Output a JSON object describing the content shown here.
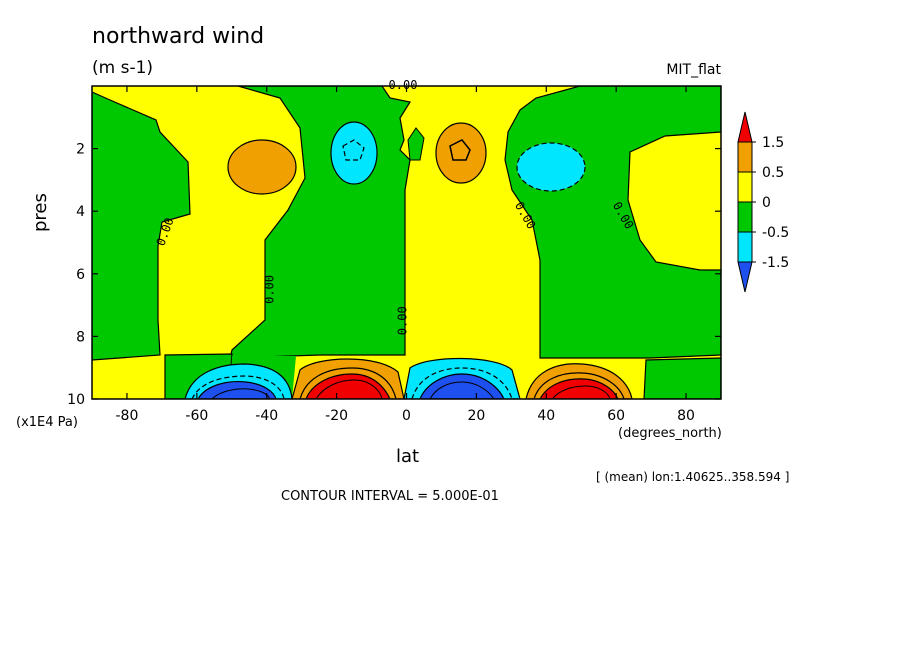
{
  "title": "northward wind",
  "units": "(m s-1)",
  "dataset_label": "MIT_flat",
  "x_axis_label": "lat",
  "x_axis_units": "(degrees_north)",
  "y_axis_label": "pres",
  "y_axis_units": "(x1E4 Pa)",
  "mean_info": "[ (mean) lon:1.40625..358.594 ]",
  "contour_info": "CONTOUR INTERVAL = 5.000E-01",
  "colors": {
    "green": "#00c800",
    "yellow": "#ffff00",
    "orange": "#f0a000",
    "red": "#f00000",
    "cyan": "#00e6ff",
    "blue": "#1e50f0"
  },
  "chart_data": {
    "type": "heatmap",
    "title": "northward wind",
    "subtitle": "(m s-1)",
    "xlabel": "lat",
    "ylabel": "pres",
    "xlim": [
      -90,
      90
    ],
    "ylim": [
      10,
      0
    ],
    "x_ticks": [
      "-80",
      "-60",
      "-40",
      "-20",
      "0",
      "20",
      "40",
      "60",
      "80"
    ],
    "x_tick_values": [
      -80,
      -60,
      -40,
      -20,
      0,
      20,
      40,
      60,
      80
    ],
    "y_ticks": [
      "2",
      "4",
      "6",
      "8",
      "10"
    ],
    "y_tick_values": [
      2,
      4,
      6,
      8,
      10
    ],
    "colorbar": {
      "labels": [
        "1.5",
        "0.5",
        "0",
        "-0.5",
        "-1.5"
      ],
      "colors": [
        "#f00000",
        "#f0a000",
        "#ffff00",
        "#00c800",
        "#00e6ff",
        "#1e50f0"
      ]
    },
    "contour_labels": [
      {
        "text": "0.00",
        "lat": -1,
        "pres": 0.1
      },
      {
        "text": "0.00",
        "lat": -68,
        "pres": 4.7
      },
      {
        "text": "0.00",
        "lat": -38,
        "pres": 6.5
      },
      {
        "text": "0.00",
        "lat": 0,
        "pres": 7.5
      },
      {
        "text": "0.00",
        "lat": 33,
        "pres": 4.2
      },
      {
        "text": "0.00",
        "lat": 61,
        "pres": 4.2
      }
    ],
    "regions": [
      {
        "value": "0 to 0.5",
        "color": "yellow",
        "description": "background"
      },
      {
        "value": "-0.5 to 0",
        "color": "green",
        "lat_range": [
          -90,
          -62
        ],
        "pres_range": [
          0,
          8.6
        ]
      },
      {
        "value": "-0.5 to 0",
        "color": "green",
        "lat_range": [
          -35,
          0
        ],
        "pres_range": [
          0,
          8.6
        ]
      },
      {
        "value": "-0.5 to 0",
        "color": "green",
        "lat_range": [
          33,
          70
        ],
        "pres_range": [
          0,
          8.6
        ]
      },
      {
        "value": "0.5 to 1.5",
        "color": "orange",
        "lat": -42,
        "pres": 2.6
      },
      {
        "value": "-1.5 to -0.5",
        "color": "cyan",
        "lat": -15,
        "pres": 2.2
      },
      {
        "value": "0.5 to 1.5",
        "color": "orange",
        "lat": 15,
        "pres": 2.2
      },
      {
        "value": "-1.5 to -0.5",
        "color": "cyan",
        "lat": 42,
        "pres": 2.6
      },
      {
        "value": "< -1.5",
        "color": "blue",
        "lat": -48,
        "pres": 9.8
      },
      {
        "value": "> 1.5",
        "color": "red",
        "lat": -16,
        "pres": 9.7
      },
      {
        "value": "< -1.5",
        "color": "blue",
        "lat": 16,
        "pres": 9.7
      },
      {
        "value": "> 1.5",
        "color": "red",
        "lat": 47,
        "pres": 9.8
      }
    ]
  }
}
